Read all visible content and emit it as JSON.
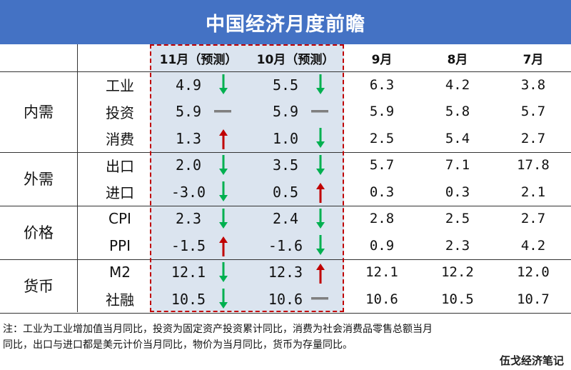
{
  "title": "中国经济月度前瞻",
  "columns": [
    "11月（预测）",
    "10月（预测）",
    "9月",
    "8月",
    "7月"
  ],
  "groups": [
    {
      "label": "内需",
      "rows": [
        {
          "item": "工业",
          "values": [
            "4.9",
            "5.5",
            "6.3",
            "4.2",
            "3.8"
          ],
          "trend": [
            "down",
            "down"
          ]
        },
        {
          "item": "投资",
          "values": [
            "5.9",
            "5.9",
            "5.9",
            "5.8",
            "5.7"
          ],
          "trend": [
            "flat",
            "flat"
          ]
        },
        {
          "item": "消费",
          "values": [
            "1.3",
            "1.0",
            "2.5",
            "5.4",
            "2.7"
          ],
          "trend": [
            "up",
            "down"
          ]
        }
      ]
    },
    {
      "label": "外需",
      "rows": [
        {
          "item": "出口",
          "values": [
            "2.0",
            "3.5",
            "5.7",
            "7.1",
            "17.8"
          ],
          "trend": [
            "down",
            "down"
          ]
        },
        {
          "item": "进口",
          "values": [
            "-3.0",
            "0.5",
            "0.3",
            "0.3",
            "2.1"
          ],
          "trend": [
            "down",
            "up"
          ]
        }
      ]
    },
    {
      "label": "价格",
      "rows": [
        {
          "item": "CPI",
          "values": [
            "2.3",
            "2.4",
            "2.8",
            "2.5",
            "2.7"
          ],
          "trend": [
            "down",
            "down"
          ]
        },
        {
          "item": "PPI",
          "values": [
            "-1.5",
            "-1.6",
            "0.9",
            "2.3",
            "4.2"
          ],
          "trend": [
            "up",
            "down"
          ]
        }
      ]
    },
    {
      "label": "货币",
      "rows": [
        {
          "item": "M2",
          "values": [
            "12.1",
            "12.3",
            "12.1",
            "12.2",
            "12.0"
          ],
          "trend": [
            "down",
            "up"
          ]
        },
        {
          "item": "社融",
          "values": [
            "10.5",
            "10.6",
            "10.6",
            "10.5",
            "10.7"
          ],
          "trend": [
            "down",
            "flat"
          ]
        }
      ]
    }
  ],
  "note_line1": "注：工业为工业增加值当月同比，投资为固定资产投资累计同比，消费为社会消费品零售总额当月",
  "note_line2": "同比，出口与进口都是美元计价当月同比，物价为当月同比，货币为存量同比。",
  "watermark": "伍戈经济笔记",
  "colors": {
    "title_bg": "#4472c4",
    "forecast_bg": "#dbe4ef",
    "forecast_border": "#c00000",
    "arrow_up": "#c00000",
    "arrow_down": "#00b050",
    "flat": "#7f7f7f"
  }
}
